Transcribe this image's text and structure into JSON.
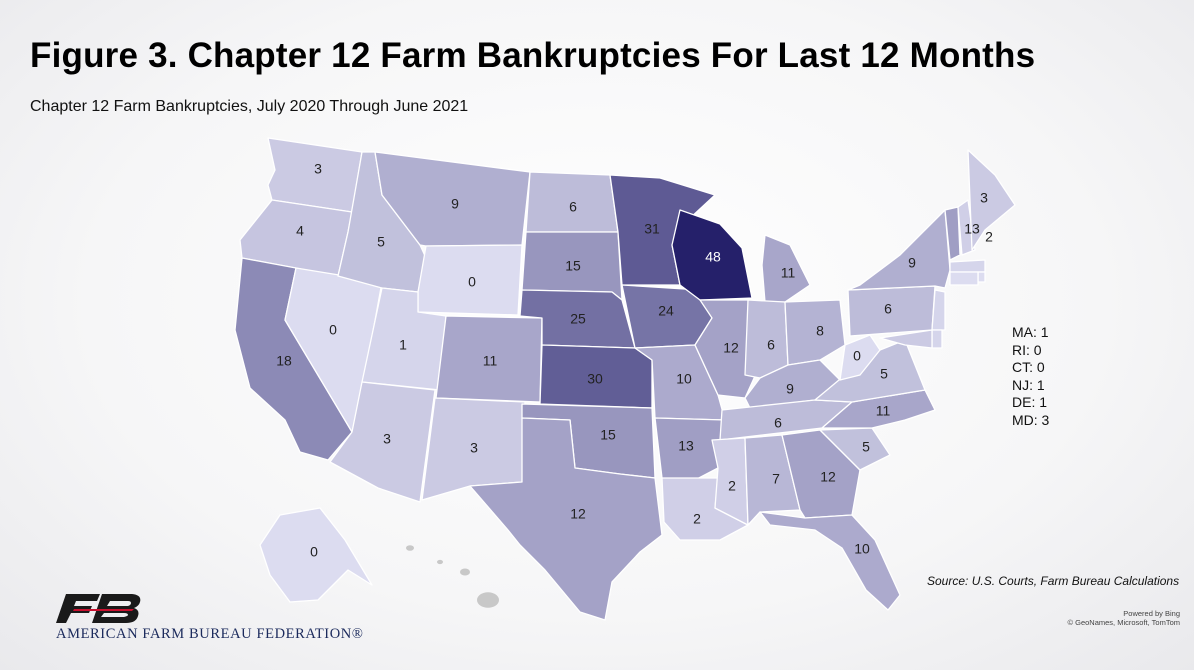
{
  "title": "Figure 3. Chapter 12 Farm Bankruptcies For Last 12 Months",
  "subtitle": "Chapter 12 Farm Bankruptcies, July 2020 Through June 2021",
  "colors": {
    "min": "#dcdcf0",
    "max": "#25206a",
    "outline": "#ffffff",
    "inactive": "#c8c8c8"
  },
  "map_data": {
    "type": "choropleth",
    "region": "United States",
    "states": [
      {
        "code": "WA",
        "value": 3
      },
      {
        "code": "OR",
        "value": 4
      },
      {
        "code": "CA",
        "value": 18
      },
      {
        "code": "NV",
        "value": 0
      },
      {
        "code": "ID",
        "value": 5
      },
      {
        "code": "MT",
        "value": 9
      },
      {
        "code": "WY",
        "value": 0
      },
      {
        "code": "UT",
        "value": 1
      },
      {
        "code": "AZ",
        "value": 3
      },
      {
        "code": "CO",
        "value": 11
      },
      {
        "code": "NM",
        "value": 3
      },
      {
        "code": "ND",
        "value": 6
      },
      {
        "code": "SD",
        "value": 15
      },
      {
        "code": "NE",
        "value": 25
      },
      {
        "code": "KS",
        "value": 30
      },
      {
        "code": "OK",
        "value": 15
      },
      {
        "code": "TX",
        "value": 12
      },
      {
        "code": "MN",
        "value": 31
      },
      {
        "code": "IA",
        "value": 24
      },
      {
        "code": "MO",
        "value": 10
      },
      {
        "code": "AR",
        "value": 13
      },
      {
        "code": "LA",
        "value": 2
      },
      {
        "code": "WI",
        "value": 48
      },
      {
        "code": "IL",
        "value": 12
      },
      {
        "code": "MI",
        "value": 11
      },
      {
        "code": "IN",
        "value": 6
      },
      {
        "code": "OH",
        "value": 8
      },
      {
        "code": "KY",
        "value": 9
      },
      {
        "code": "TN",
        "value": 6
      },
      {
        "code": "MS",
        "value": 2
      },
      {
        "code": "AL",
        "value": 7
      },
      {
        "code": "GA",
        "value": 12
      },
      {
        "code": "FL",
        "value": 10
      },
      {
        "code": "SC",
        "value": 5
      },
      {
        "code": "NC",
        "value": 11
      },
      {
        "code": "VA",
        "value": 5
      },
      {
        "code": "WV",
        "value": 0
      },
      {
        "code": "PA",
        "value": 6
      },
      {
        "code": "NY",
        "value": 9
      },
      {
        "code": "VT",
        "value": 13
      },
      {
        "code": "NH",
        "value": 2
      },
      {
        "code": "ME",
        "value": 3
      },
      {
        "code": "AK",
        "value": 0
      },
      {
        "code": "NJ",
        "value": 1
      },
      {
        "code": "MA",
        "value": 1
      },
      {
        "code": "RI",
        "value": 0
      },
      {
        "code": "CT",
        "value": 0
      },
      {
        "code": "DE",
        "value": 1
      },
      {
        "code": "MD",
        "value": 3
      }
    ]
  },
  "legend_entries": [
    {
      "label": "MA: 1"
    },
    {
      "label": "RI: 0"
    },
    {
      "label": "CT: 0"
    },
    {
      "label": "NJ: 1"
    },
    {
      "label": "DE: 1"
    },
    {
      "label": "MD: 3"
    }
  ],
  "source": "Source: U.S. Courts, Farm Bureau Calculations",
  "attribution": {
    "line1": "Powered by Bing",
    "line2": "© GeoNames, Microsoft, TomTom"
  },
  "org_name": "AMERICAN FARM BUREAU FEDERATION®",
  "logo_text": "FB"
}
